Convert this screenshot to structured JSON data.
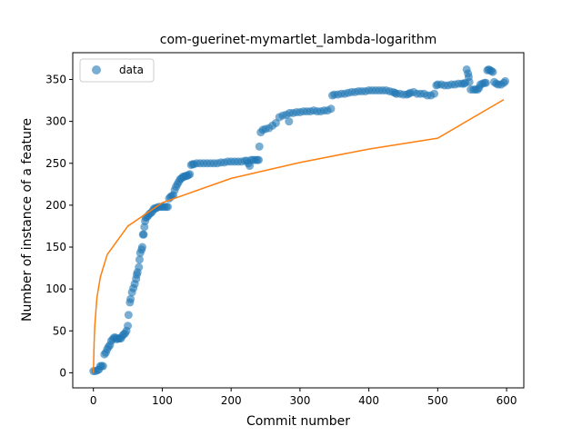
{
  "chart_data": {
    "type": "scatter",
    "title": "com-guerinet-mymartlet_lambda-logarithm",
    "xlabel": "Commit number",
    "ylabel": "Number of instance of a feature",
    "xlim": [
      -30,
      625
    ],
    "ylim": [
      -18,
      382
    ],
    "xticks": [
      0,
      100,
      200,
      300,
      400,
      500,
      600
    ],
    "yticks": [
      0,
      50,
      100,
      150,
      200,
      250,
      300,
      350
    ],
    "grid": false,
    "legend": {
      "placement": "top-left",
      "entries": [
        "data"
      ]
    },
    "series": [
      {
        "name": "data",
        "kind": "scatter",
        "color": "#1f77b4",
        "points": [
          [
            0,
            2
          ],
          [
            3,
            2
          ],
          [
            6,
            3
          ],
          [
            8,
            4
          ],
          [
            10,
            8
          ],
          [
            12,
            8
          ],
          [
            14,
            8
          ],
          [
            16,
            22
          ],
          [
            18,
            24
          ],
          [
            20,
            28
          ],
          [
            22,
            31
          ],
          [
            24,
            33
          ],
          [
            26,
            38
          ],
          [
            28,
            40
          ],
          [
            30,
            42
          ],
          [
            32,
            42
          ],
          [
            34,
            40
          ],
          [
            36,
            41
          ],
          [
            38,
            41
          ],
          [
            40,
            41
          ],
          [
            42,
            44
          ],
          [
            44,
            46
          ],
          [
            46,
            47
          ],
          [
            48,
            50
          ],
          [
            50,
            56
          ],
          [
            51,
            69
          ],
          [
            53,
            84
          ],
          [
            54,
            88
          ],
          [
            56,
            96
          ],
          [
            58,
            101
          ],
          [
            60,
            106
          ],
          [
            62,
            112
          ],
          [
            63,
            117
          ],
          [
            64,
            120
          ],
          [
            66,
            126
          ],
          [
            67,
            135
          ],
          [
            68,
            143
          ],
          [
            70,
            147
          ],
          [
            71,
            150
          ],
          [
            72,
            165
          ],
          [
            73,
            165
          ],
          [
            74,
            174
          ],
          [
            75,
            181
          ],
          [
            76,
            185
          ],
          [
            78,
            186
          ],
          [
            80,
            188
          ],
          [
            82,
            190
          ],
          [
            84,
            191
          ],
          [
            86,
            193
          ],
          [
            88,
            196
          ],
          [
            90,
            196
          ],
          [
            92,
            197
          ],
          [
            95,
            198
          ],
          [
            98,
            198
          ],
          [
            100,
            198
          ],
          [
            103,
            198
          ],
          [
            106,
            198
          ],
          [
            108,
            198
          ],
          [
            110,
            208
          ],
          [
            112,
            210
          ],
          [
            114,
            211
          ],
          [
            116,
            212
          ],
          [
            118,
            218
          ],
          [
            120,
            222
          ],
          [
            122,
            225
          ],
          [
            124,
            228
          ],
          [
            126,
            231
          ],
          [
            128,
            232
          ],
          [
            130,
            234
          ],
          [
            132,
            234
          ],
          [
            134,
            235
          ],
          [
            136,
            235
          ],
          [
            138,
            236
          ],
          [
            140,
            237
          ],
          [
            142,
            248
          ],
          [
            144,
            249
          ],
          [
            146,
            249
          ],
          [
            150,
            250
          ],
          [
            155,
            250
          ],
          [
            160,
            250
          ],
          [
            165,
            250
          ],
          [
            170,
            250
          ],
          [
            175,
            250
          ],
          [
            180,
            250
          ],
          [
            185,
            251
          ],
          [
            190,
            251
          ],
          [
            195,
            252
          ],
          [
            200,
            252
          ],
          [
            205,
            252
          ],
          [
            210,
            252
          ],
          [
            215,
            252
          ],
          [
            220,
            253
          ],
          [
            223,
            253
          ],
          [
            225,
            250
          ],
          [
            227,
            247
          ],
          [
            229,
            254
          ],
          [
            232,
            254
          ],
          [
            235,
            254
          ],
          [
            238,
            254
          ],
          [
            240,
            254
          ],
          [
            241,
            270
          ],
          [
            243,
            287
          ],
          [
            246,
            290
          ],
          [
            250,
            291
          ],
          [
            255,
            292
          ],
          [
            260,
            295
          ],
          [
            265,
            298
          ],
          [
            270,
            305
          ],
          [
            275,
            307
          ],
          [
            280,
            308
          ],
          [
            284,
            300
          ],
          [
            285,
            310
          ],
          [
            290,
            310
          ],
          [
            295,
            311
          ],
          [
            300,
            311
          ],
          [
            305,
            312
          ],
          [
            310,
            312
          ],
          [
            315,
            312
          ],
          [
            320,
            313
          ],
          [
            325,
            312
          ],
          [
            330,
            312
          ],
          [
            335,
            313
          ],
          [
            340,
            313
          ],
          [
            345,
            315
          ],
          [
            347,
            331
          ],
          [
            350,
            332
          ],
          [
            355,
            332
          ],
          [
            360,
            333
          ],
          [
            365,
            333
          ],
          [
            370,
            334
          ],
          [
            375,
            335
          ],
          [
            380,
            335
          ],
          [
            385,
            336
          ],
          [
            390,
            336
          ],
          [
            395,
            336
          ],
          [
            400,
            337
          ],
          [
            405,
            337
          ],
          [
            410,
            337
          ],
          [
            415,
            337
          ],
          [
            420,
            337
          ],
          [
            425,
            337
          ],
          [
            430,
            336
          ],
          [
            435,
            335
          ],
          [
            438,
            334
          ],
          [
            440,
            333
          ],
          [
            445,
            333
          ],
          [
            450,
            332
          ],
          [
            455,
            332
          ],
          [
            458,
            333
          ],
          [
            460,
            334
          ],
          [
            465,
            335
          ],
          [
            470,
            333
          ],
          [
            475,
            333
          ],
          [
            480,
            333
          ],
          [
            485,
            331
          ],
          [
            490,
            331
          ],
          [
            495,
            333
          ],
          [
            498,
            343
          ],
          [
            500,
            344
          ],
          [
            505,
            344
          ],
          [
            510,
            343
          ],
          [
            515,
            343
          ],
          [
            520,
            344
          ],
          [
            525,
            344
          ],
          [
            530,
            345
          ],
          [
            535,
            345
          ],
          [
            538,
            345
          ],
          [
            540,
            346
          ],
          [
            542,
            362
          ],
          [
            544,
            357
          ],
          [
            545,
            353
          ],
          [
            546,
            347
          ],
          [
            548,
            338
          ],
          [
            552,
            338
          ],
          [
            555,
            338
          ],
          [
            558,
            338
          ],
          [
            560,
            340
          ],
          [
            562,
            344
          ],
          [
            565,
            345
          ],
          [
            568,
            346
          ],
          [
            570,
            346
          ],
          [
            572,
            361
          ],
          [
            574,
            362
          ],
          [
            576,
            361
          ],
          [
            578,
            360
          ],
          [
            580,
            359
          ],
          [
            582,
            347
          ],
          [
            585,
            345
          ],
          [
            588,
            344
          ],
          [
            592,
            344
          ],
          [
            596,
            346
          ],
          [
            598,
            348
          ]
        ]
      },
      {
        "name": "",
        "kind": "line",
        "color": "#ff7f0e",
        "model": "logarithm",
        "x": [
          0,
          1,
          2,
          5,
          10,
          20,
          50,
          100,
          200,
          300,
          400,
          500,
          596
        ],
        "y": [
          0,
          35,
          56,
          89,
          114,
          141,
          175,
          203,
          232,
          251,
          267,
          280,
          326
        ]
      }
    ]
  }
}
